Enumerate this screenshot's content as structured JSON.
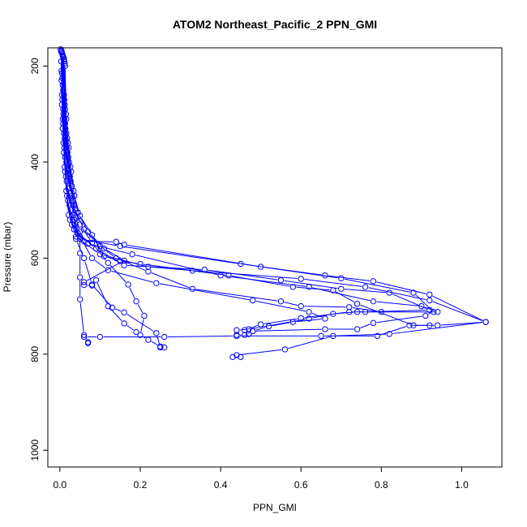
{
  "chart_data": {
    "type": "line",
    "title": "ATOM2 Northeast_Pacific_2 PPN_GMI",
    "xlabel": "PPN_GMI",
    "ylabel": "Pressure (mbar)",
    "xlim": [
      -0.03,
      1.1
    ],
    "ylim": [
      1035,
      162
    ],
    "y_reversed": true,
    "x_ticks": [
      0.0,
      0.2,
      0.4,
      0.6,
      0.8,
      1.0
    ],
    "x_tick_labels": [
      "0.0",
      "0.2",
      "0.4",
      "0.6",
      "0.8",
      "1.0"
    ],
    "y_ticks": [
      200,
      400,
      600,
      800,
      1000
    ],
    "y_tick_labels": [
      "200",
      "400",
      "600",
      "800",
      "1000"
    ],
    "grid": false,
    "legend": "none",
    "color": "#0000ff",
    "series": [
      {
        "points": [
          [
            0.002,
            165
          ],
          [
            0.003,
            190
          ],
          [
            0.004,
            230
          ],
          [
            0.005,
            280
          ],
          [
            0.007,
            330
          ],
          [
            0.01,
            380
          ],
          [
            0.013,
            420
          ],
          [
            0.018,
            470
          ],
          [
            0.025,
            520
          ],
          [
            0.05,
            560
          ],
          [
            0.15,
            575
          ],
          [
            0.45,
            612
          ],
          [
            0.66,
            636
          ],
          [
            0.78,
            648
          ],
          [
            0.92,
            676
          ],
          [
            1.06,
            733
          ],
          [
            0.94,
            740
          ],
          [
            0.87,
            740
          ],
          [
            0.79,
            762
          ],
          [
            0.65,
            762
          ],
          [
            0.44,
            762
          ],
          [
            0.26,
            764
          ],
          [
            0.1,
            764
          ],
          [
            0.06,
            764
          ]
        ]
      },
      {
        "points": [
          [
            0.003,
            170
          ],
          [
            0.004,
            210
          ],
          [
            0.005,
            260
          ],
          [
            0.007,
            310
          ],
          [
            0.009,
            360
          ],
          [
            0.012,
            410
          ],
          [
            0.016,
            460
          ],
          [
            0.022,
            510
          ],
          [
            0.04,
            555
          ],
          [
            0.1,
            592
          ],
          [
            0.22,
            618
          ],
          [
            0.33,
            626
          ],
          [
            0.6,
            643
          ],
          [
            0.76,
            660
          ],
          [
            0.92,
            688
          ],
          [
            1.06,
            733
          ],
          [
            0.82,
            758
          ],
          [
            0.68,
            762
          ],
          [
            0.56,
            790
          ],
          [
            0.44,
            802
          ],
          [
            0.43,
            806
          ],
          [
            0.45,
            806
          ]
        ]
      },
      {
        "points": [
          [
            0.004,
            168
          ],
          [
            0.005,
            215
          ],
          [
            0.006,
            270
          ],
          [
            0.008,
            320
          ],
          [
            0.011,
            370
          ],
          [
            0.015,
            430
          ],
          [
            0.02,
            480
          ],
          [
            0.03,
            530
          ],
          [
            0.06,
            565
          ],
          [
            0.14,
            566
          ],
          [
            0.16,
            572
          ],
          [
            0.5,
            618
          ],
          [
            0.7,
            642
          ],
          [
            0.88,
            672
          ],
          [
            0.93,
            712
          ],
          [
            0.91,
            720
          ],
          [
            0.78,
            735
          ],
          [
            0.74,
            748
          ],
          [
            0.66,
            748
          ],
          [
            0.48,
            752
          ],
          [
            0.46,
            760
          ],
          [
            0.44,
            760
          ]
        ]
      },
      {
        "points": [
          [
            0.005,
            172
          ],
          [
            0.006,
            225
          ],
          [
            0.008,
            290
          ],
          [
            0.01,
            340
          ],
          [
            0.013,
            390
          ],
          [
            0.017,
            440
          ],
          [
            0.024,
            490
          ],
          [
            0.035,
            540
          ],
          [
            0.07,
            570
          ],
          [
            0.18,
            592
          ],
          [
            0.4,
            636
          ],
          [
            0.62,
            660
          ],
          [
            0.78,
            690
          ],
          [
            0.9,
            700
          ],
          [
            0.94,
            712
          ],
          [
            0.74,
            712
          ],
          [
            0.68,
            716
          ],
          [
            0.62,
            726
          ],
          [
            0.47,
            748
          ],
          [
            0.44,
            750
          ]
        ]
      },
      {
        "points": [
          [
            0.006,
            175
          ],
          [
            0.007,
            240
          ],
          [
            0.009,
            300
          ],
          [
            0.012,
            350
          ],
          [
            0.016,
            400
          ],
          [
            0.021,
            455
          ],
          [
            0.028,
            500
          ],
          [
            0.045,
            548
          ],
          [
            0.09,
            580
          ],
          [
            0.16,
            615
          ],
          [
            0.36,
            624
          ],
          [
            0.55,
            646
          ],
          [
            0.7,
            664
          ],
          [
            0.82,
            672
          ],
          [
            0.92,
            708
          ],
          [
            0.76,
            712
          ],
          [
            0.72,
            712
          ],
          [
            0.6,
            725
          ],
          [
            0.5,
            738
          ],
          [
            0.46,
            750
          ]
        ]
      },
      {
        "points": [
          [
            0.007,
            178
          ],
          [
            0.008,
            250
          ],
          [
            0.011,
            310
          ],
          [
            0.014,
            360
          ],
          [
            0.019,
            410
          ],
          [
            0.026,
            465
          ],
          [
            0.034,
            510
          ],
          [
            0.05,
            555
          ],
          [
            0.08,
            600
          ],
          [
            0.12,
            625
          ],
          [
            0.24,
            652
          ],
          [
            0.48,
            688
          ],
          [
            0.62,
            712
          ],
          [
            0.66,
            726
          ],
          [
            0.58,
            733
          ],
          [
            0.52,
            742
          ],
          [
            0.48,
            752
          ],
          [
            0.47,
            758
          ]
        ]
      },
      {
        "points": [
          [
            0.008,
            180
          ],
          [
            0.01,
            260
          ],
          [
            0.013,
            320
          ],
          [
            0.017,
            370
          ],
          [
            0.022,
            420
          ],
          [
            0.03,
            470
          ],
          [
            0.04,
            515
          ],
          [
            0.05,
            545
          ],
          [
            0.05,
            590
          ],
          [
            0.05,
            640
          ],
          [
            0.05,
            686
          ],
          [
            0.06,
            760
          ],
          [
            0.07,
            775
          ],
          [
            0.07,
            777
          ]
        ]
      },
      {
        "points": [
          [
            0.009,
            182
          ],
          [
            0.011,
            270
          ],
          [
            0.014,
            330
          ],
          [
            0.019,
            380
          ],
          [
            0.025,
            430
          ],
          [
            0.032,
            480
          ],
          [
            0.036,
            520
          ],
          [
            0.04,
            560
          ],
          [
            0.06,
            600
          ],
          [
            0.08,
            655
          ],
          [
            0.13,
            703
          ],
          [
            0.16,
            713
          ],
          [
            0.24,
            756
          ],
          [
            0.25,
            786
          ],
          [
            0.26,
            786
          ]
        ]
      },
      {
        "points": [
          [
            0.01,
            186
          ],
          [
            0.012,
            280
          ],
          [
            0.016,
            340
          ],
          [
            0.021,
            390
          ],
          [
            0.027,
            440
          ],
          [
            0.034,
            490
          ],
          [
            0.05,
            530
          ],
          [
            0.08,
            568
          ],
          [
            0.12,
            610
          ],
          [
            0.17,
            655
          ],
          [
            0.19,
            690
          ],
          [
            0.21,
            720
          ],
          [
            0.2,
            760
          ],
          [
            0.22,
            770
          ],
          [
            0.25,
            784
          ]
        ]
      },
      {
        "points": [
          [
            0.011,
            190
          ],
          [
            0.013,
            290
          ],
          [
            0.018,
            350
          ],
          [
            0.023,
            400
          ],
          [
            0.03,
            450
          ],
          [
            0.038,
            500
          ],
          [
            0.06,
            540
          ],
          [
            0.1,
            575
          ],
          [
            0.14,
            600
          ],
          [
            0.22,
            628
          ],
          [
            0.33,
            664
          ],
          [
            0.55,
            690
          ],
          [
            0.6,
            700
          ],
          [
            0.72,
            702
          ],
          [
            0.8,
            712
          ]
        ]
      },
      {
        "points": [
          [
            0.012,
            195
          ],
          [
            0.015,
            300
          ],
          [
            0.02,
            360
          ],
          [
            0.026,
            410
          ],
          [
            0.034,
            460
          ],
          [
            0.045,
            505
          ],
          [
            0.07,
            545
          ],
          [
            0.11,
            580
          ],
          [
            0.16,
            605
          ],
          [
            0.06,
            650
          ],
          [
            0.06,
            656
          ],
          [
            0.08,
            657
          ],
          [
            0.09,
            646
          ],
          [
            0.12,
            700
          ],
          [
            0.16,
            736
          ],
          [
            0.19,
            754
          ]
        ]
      },
      {
        "points": [
          [
            0.013,
            200
          ],
          [
            0.016,
            310
          ],
          [
            0.022,
            370
          ],
          [
            0.028,
            420
          ],
          [
            0.036,
            470
          ],
          [
            0.05,
            512
          ],
          [
            0.08,
            552
          ],
          [
            0.11,
            596
          ],
          [
            0.15,
            606
          ],
          [
            0.2,
            612
          ],
          [
            0.42,
            636
          ],
          [
            0.58,
            660
          ],
          [
            0.68,
            667
          ],
          [
            0.74,
            695
          ],
          [
            0.88,
            740
          ],
          [
            0.92,
            740
          ]
        ]
      }
    ]
  }
}
